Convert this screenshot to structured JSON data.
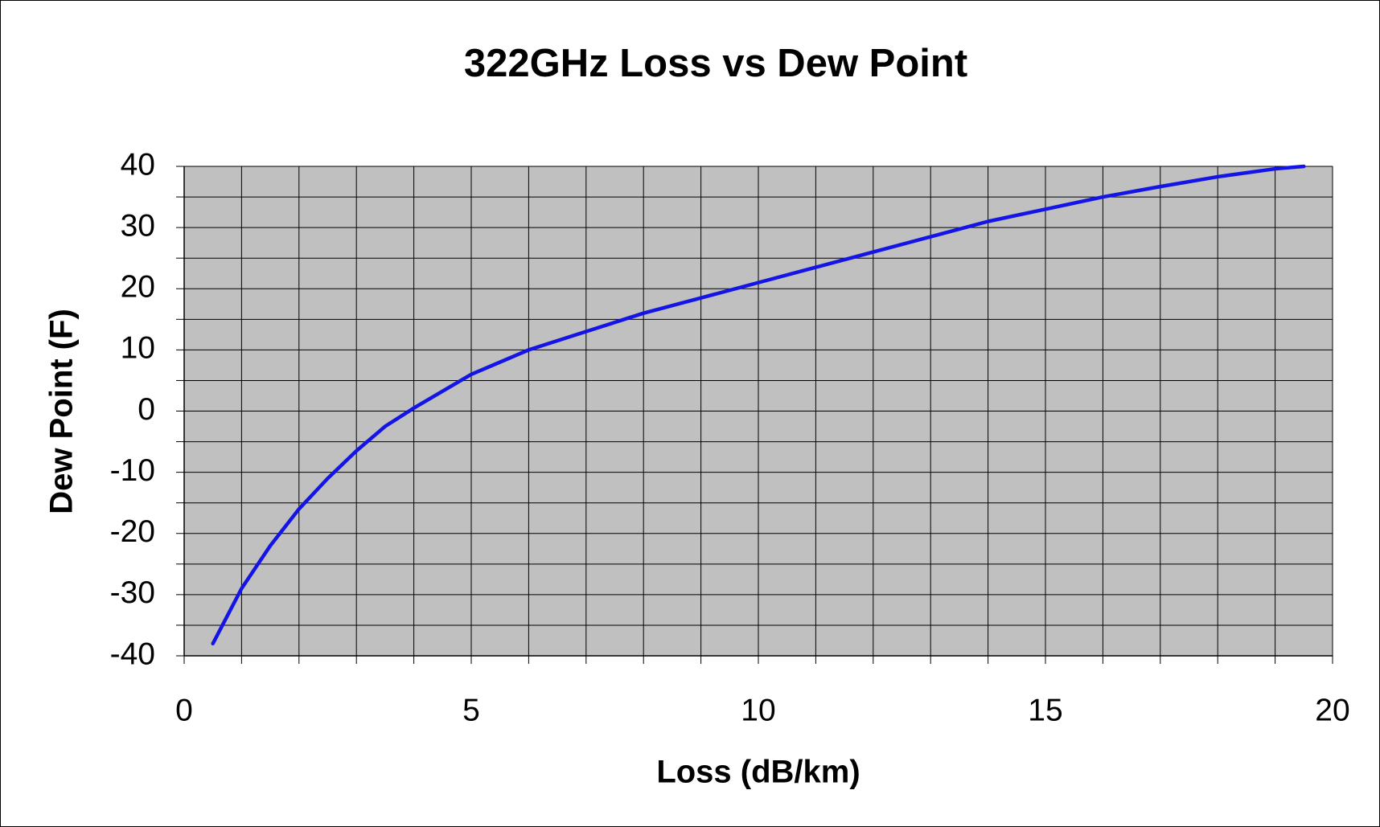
{
  "chart_data": {
    "type": "line",
    "title": "322GHz Loss vs Dew Point",
    "x_label": "Loss (dB/km)",
    "y_label": "Dew Point (F)",
    "x": [
      0.5,
      1,
      1.5,
      2,
      2.5,
      3,
      3.5,
      4,
      5,
      6,
      7,
      8,
      9,
      10,
      11,
      12,
      13,
      14,
      15,
      16,
      17,
      18,
      19,
      19.5
    ],
    "series": [
      {
        "name": "Dew Point",
        "color": "#1414e6",
        "values": [
          -38,
          -29,
          -22,
          -16,
          -11,
          -6.5,
          -2.5,
          0.5,
          6,
          10,
          13,
          16,
          18.5,
          21,
          23.5,
          26,
          28.5,
          31,
          33,
          35,
          36.7,
          38.3,
          39.6,
          40
        ]
      }
    ],
    "xlim": [
      0,
      20
    ],
    "ylim": [
      -40,
      40
    ],
    "xticks": [
      0,
      5,
      10,
      15,
      20
    ],
    "yticks": [
      -40,
      -30,
      -20,
      -10,
      0,
      10,
      20,
      30,
      40
    ],
    "xminorticks": [
      0,
      1,
      2,
      3,
      4,
      5,
      6,
      7,
      8,
      9,
      10,
      11,
      12,
      13,
      14,
      15,
      16,
      17,
      18,
      19,
      20
    ],
    "yminorticks": [
      -40,
      -35,
      -30,
      -25,
      -20,
      -15,
      -10,
      -5,
      0,
      5,
      10,
      15,
      20,
      25,
      30,
      35,
      40
    ],
    "grid": true,
    "plot_background": "#c0c0c0"
  }
}
